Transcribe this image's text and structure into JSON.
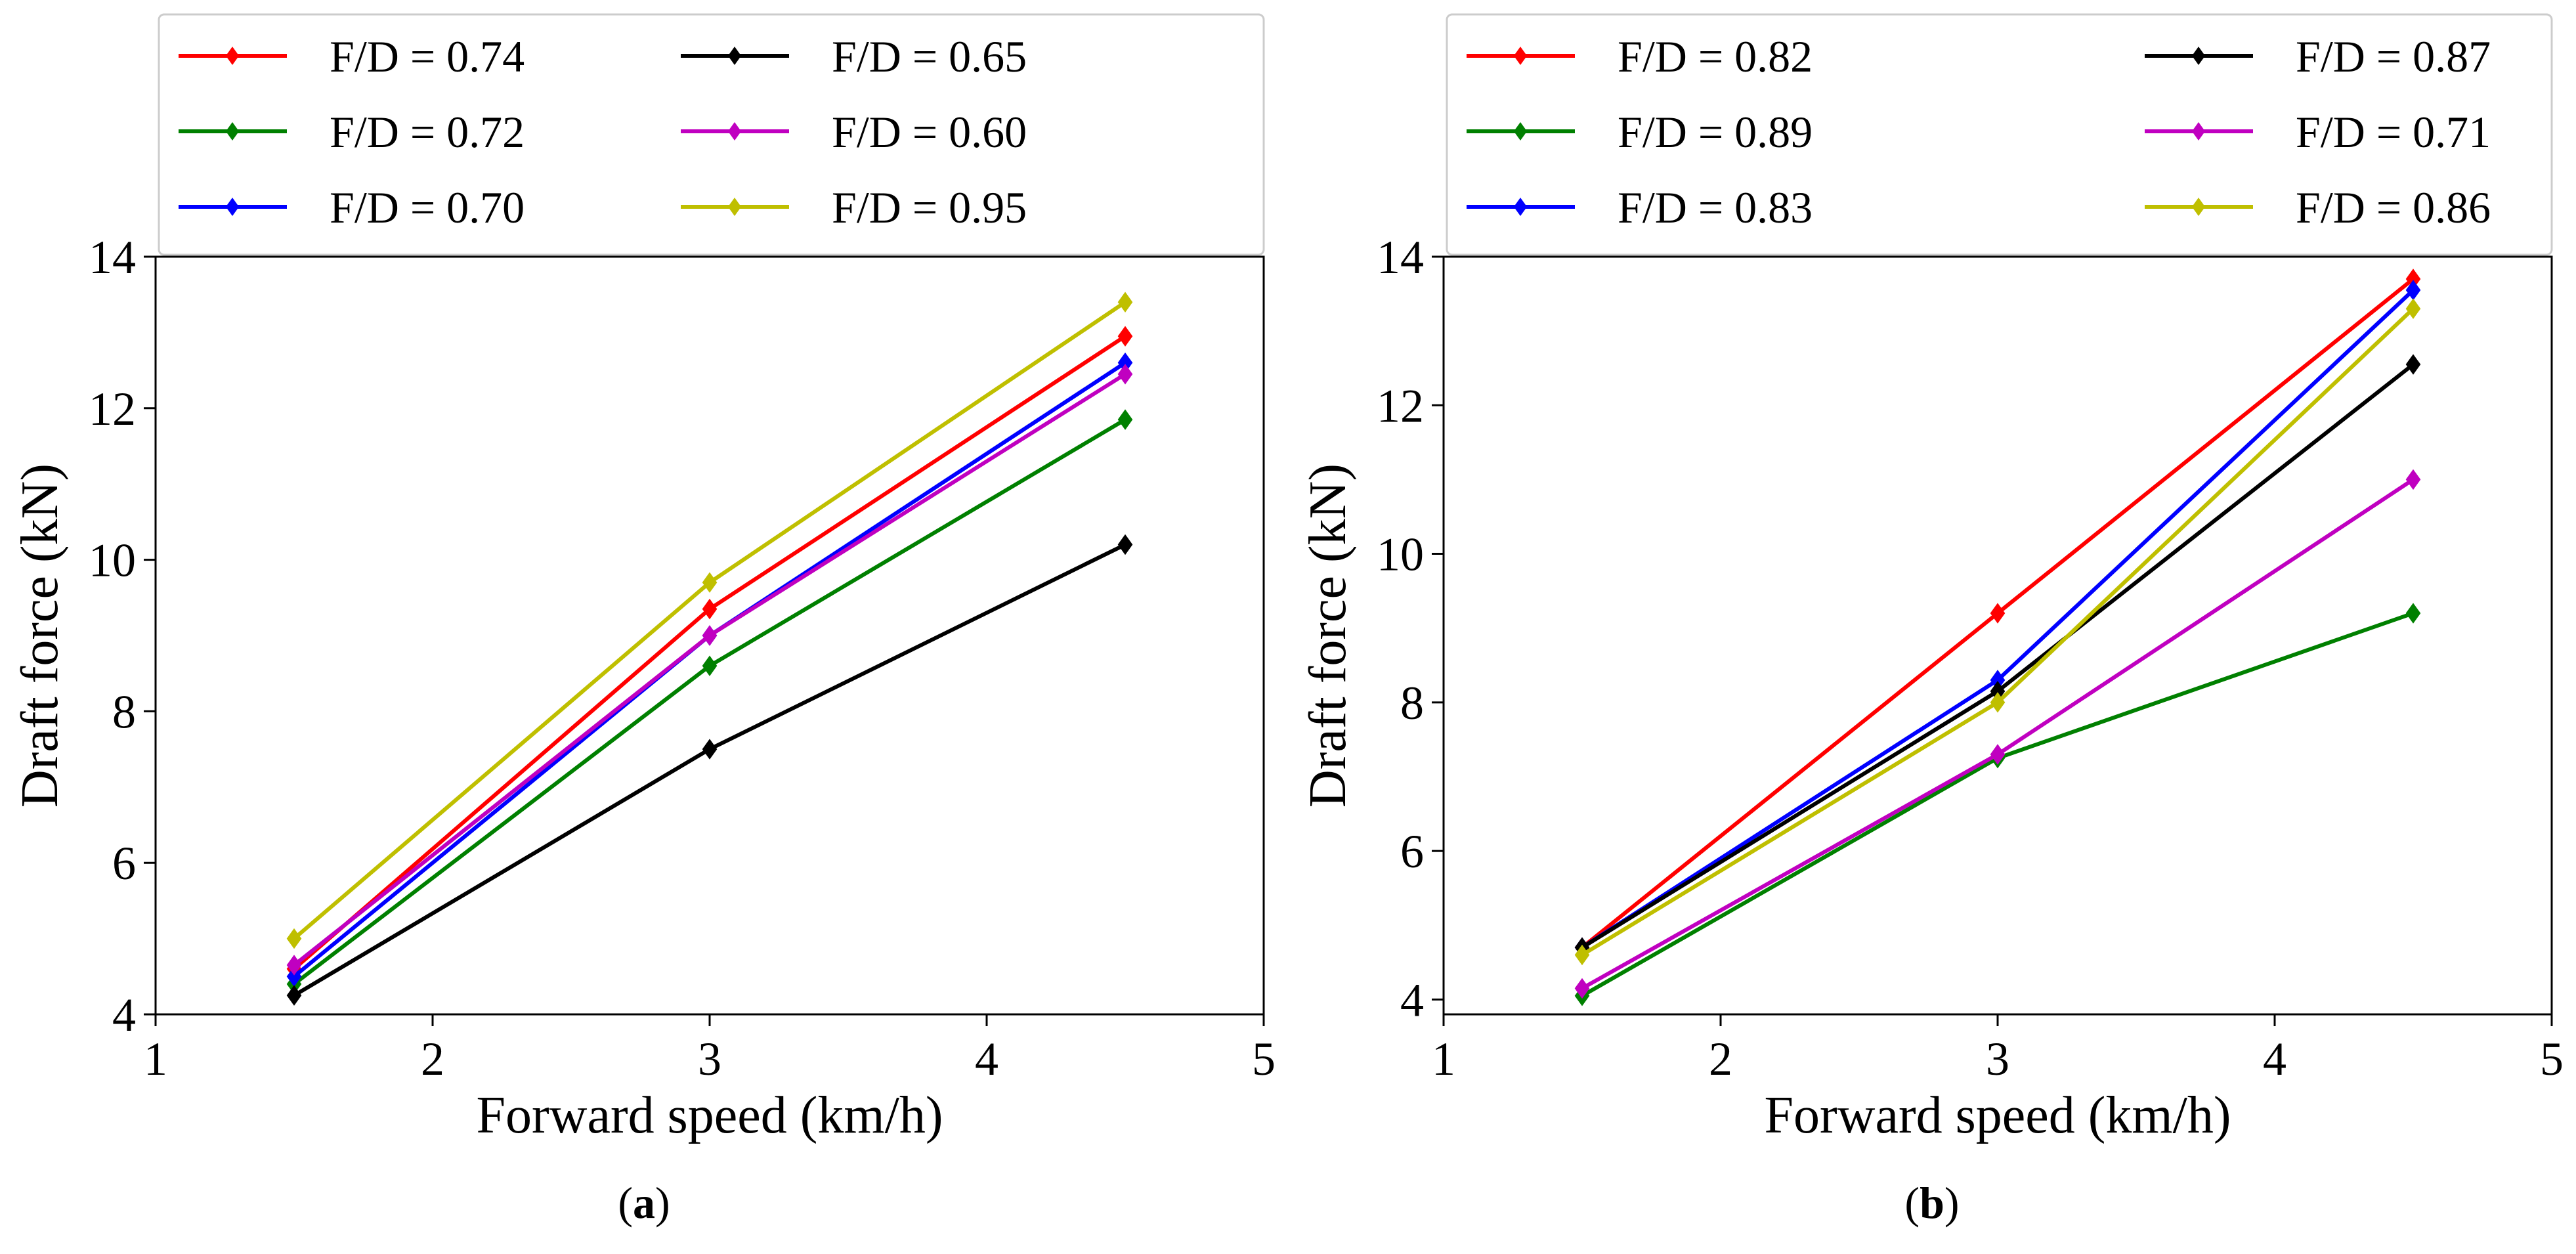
{
  "chart_data": [
    {
      "type": "line",
      "panel_label": "a",
      "xlabel": "Forward speed (km/h)",
      "ylabel": "Draft force (kN)",
      "xlim": [
        1,
        5
      ],
      "ylim": [
        4,
        14
      ],
      "xticks": [
        1,
        2,
        3,
        4,
        5
      ],
      "yticks": [
        4,
        6,
        8,
        10,
        12,
        14
      ],
      "x": [
        1.5,
        3,
        4.5
      ],
      "grid": false,
      "legend": "above plot, 2 columns",
      "marker": "diamond",
      "series": [
        {
          "name": "F/D = 0.74",
          "color": "#ff0000",
          "values": [
            4.6,
            9.35,
            12.95
          ]
        },
        {
          "name": "F/D = 0.72",
          "color": "#008000",
          "values": [
            4.4,
            8.6,
            11.85
          ]
        },
        {
          "name": "F/D = 0.70",
          "color": "#0000ff",
          "values": [
            4.5,
            9.0,
            12.6
          ]
        },
        {
          "name": "F/D = 0.65",
          "color": "#000000",
          "values": [
            4.25,
            7.5,
            10.2
          ]
        },
        {
          "name": "F/D = 0.60",
          "color": "#c000c0",
          "values": [
            4.65,
            9.0,
            12.45
          ]
        },
        {
          "name": "F/D = 0.95",
          "color": "#bfbf00",
          "values": [
            5.0,
            9.7,
            13.4
          ]
        }
      ]
    },
    {
      "type": "line",
      "panel_label": "b",
      "xlabel": "Forward speed (km/h)",
      "ylabel": "Draft force (kN)",
      "xlim": [
        1,
        5
      ],
      "ylim": [
        3.8,
        14
      ],
      "xticks": [
        1,
        2,
        3,
        4,
        5
      ],
      "yticks": [
        4,
        6,
        8,
        10,
        12,
        14
      ],
      "x": [
        1.5,
        3,
        4.5
      ],
      "grid": false,
      "legend": "above plot, 2 columns",
      "marker": "diamond",
      "series": [
        {
          "name": "F/D = 0.82",
          "color": "#ff0000",
          "values": [
            4.7,
            9.2,
            13.7
          ]
        },
        {
          "name": "F/D = 0.89",
          "color": "#008000",
          "values": [
            4.05,
            7.25,
            9.2
          ]
        },
        {
          "name": "F/D = 0.83",
          "color": "#0000ff",
          "values": [
            4.7,
            8.3,
            13.55
          ]
        },
        {
          "name": "F/D = 0.87",
          "color": "#000000",
          "values": [
            4.7,
            8.15,
            12.55
          ]
        },
        {
          "name": "F/D = 0.71",
          "color": "#c000c0",
          "values": [
            4.15,
            7.3,
            11.0
          ]
        },
        {
          "name": "F/D = 0.86",
          "color": "#bfbf00",
          "values": [
            4.6,
            8.0,
            13.3
          ]
        }
      ]
    }
  ]
}
